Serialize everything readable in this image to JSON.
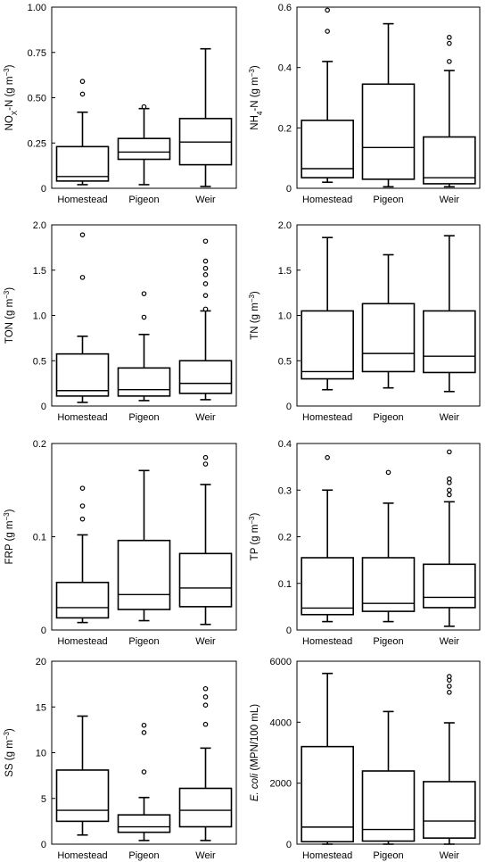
{
  "chart_data": [
    {
      "type": "box",
      "ylabel_parts": [
        {
          "t": "NO"
        },
        {
          "t": "X",
          "sub": true
        },
        {
          "t": "-N (g m"
        },
        {
          "t": "−3",
          "sup": true
        },
        {
          "t": ")"
        }
      ],
      "ylim": [
        0,
        1.0
      ],
      "yticks": [
        "0",
        "0.25",
        "0.50",
        "0.75",
        "1.00"
      ],
      "ytick_values": [
        0,
        0.25,
        0.5,
        0.75,
        1.0
      ],
      "categories": [
        "Homestead",
        "Pigeon",
        "Weir"
      ],
      "boxes": [
        {
          "whislo": 0.02,
          "q1": 0.04,
          "med": 0.065,
          "q3": 0.23,
          "whishi": 0.42,
          "fliers": [
            0.52,
            0.59
          ]
        },
        {
          "whislo": 0.02,
          "q1": 0.16,
          "med": 0.2,
          "q3": 0.275,
          "whishi": 0.44,
          "fliers": [
            0.45
          ]
        },
        {
          "whislo": 0.01,
          "q1": 0.13,
          "med": 0.255,
          "q3": 0.385,
          "whishi": 0.77,
          "fliers": []
        }
      ]
    },
    {
      "type": "box",
      "ylabel_parts": [
        {
          "t": "NH"
        },
        {
          "t": "4",
          "sub": true
        },
        {
          "t": "-N (g m"
        },
        {
          "t": "−3",
          "sup": true
        },
        {
          "t": ")"
        }
      ],
      "ylim": [
        0,
        0.6
      ],
      "yticks": [
        "0",
        "0.2",
        "0.4",
        "0.6"
      ],
      "ytick_values": [
        0,
        0.2,
        0.4,
        0.6
      ],
      "categories": [
        "Homestead",
        "Pigeon",
        "Weir"
      ],
      "boxes": [
        {
          "whislo": 0.02,
          "q1": 0.035,
          "med": 0.065,
          "q3": 0.225,
          "whishi": 0.42,
          "fliers": [
            0.52,
            0.59
          ]
        },
        {
          "whislo": 0.005,
          "q1": 0.03,
          "med": 0.135,
          "q3": 0.345,
          "whishi": 0.545,
          "fliers": []
        },
        {
          "whislo": 0.005,
          "q1": 0.015,
          "med": 0.035,
          "q3": 0.17,
          "whishi": 0.39,
          "fliers": [
            0.42,
            0.48,
            0.5
          ]
        }
      ]
    },
    {
      "type": "box",
      "ylabel_parts": [
        {
          "t": "TON (g m"
        },
        {
          "t": "−3",
          "sup": true
        },
        {
          "t": ")"
        }
      ],
      "ylim": [
        0,
        2.0
      ],
      "yticks": [
        "0",
        "0.5",
        "1.0",
        "1.5",
        "2.0"
      ],
      "ytick_values": [
        0,
        0.5,
        1.0,
        1.5,
        2.0
      ],
      "categories": [
        "Homestead",
        "Pigeon",
        "Weir"
      ],
      "boxes": [
        {
          "whislo": 0.04,
          "q1": 0.11,
          "med": 0.17,
          "q3": 0.575,
          "whishi": 0.77,
          "fliers": [
            1.42,
            1.89
          ]
        },
        {
          "whislo": 0.06,
          "q1": 0.11,
          "med": 0.18,
          "q3": 0.42,
          "whishi": 0.79,
          "fliers": [
            0.98,
            1.24
          ]
        },
        {
          "whislo": 0.07,
          "q1": 0.14,
          "med": 0.25,
          "q3": 0.5,
          "whishi": 1.05,
          "fliers": [
            1.07,
            1.22,
            1.35,
            1.45,
            1.52,
            1.6,
            1.82
          ]
        }
      ]
    },
    {
      "type": "box",
      "ylabel_parts": [
        {
          "t": "TN (g m"
        },
        {
          "t": "−3",
          "sup": true
        },
        {
          "t": ")"
        }
      ],
      "ylim": [
        0,
        2.0
      ],
      "yticks": [
        "0",
        "0.5",
        "1.0",
        "1.5",
        "2.0"
      ],
      "ytick_values": [
        0,
        0.5,
        1.0,
        1.5,
        2.0
      ],
      "categories": [
        "Homestead",
        "Pigeon",
        "Weir"
      ],
      "boxes": [
        {
          "whislo": 0.18,
          "q1": 0.3,
          "med": 0.38,
          "q3": 1.05,
          "whishi": 1.86,
          "fliers": []
        },
        {
          "whislo": 0.2,
          "q1": 0.38,
          "med": 0.58,
          "q3": 1.13,
          "whishi": 1.67,
          "fliers": []
        },
        {
          "whislo": 0.16,
          "q1": 0.37,
          "med": 0.55,
          "q3": 1.05,
          "whishi": 1.88,
          "fliers": []
        }
      ]
    },
    {
      "type": "box",
      "ylabel_parts": [
        {
          "t": "FRP (g m"
        },
        {
          "t": "−3",
          "sup": true
        },
        {
          "t": ")"
        }
      ],
      "ylim": [
        0,
        0.2
      ],
      "yticks": [
        "0",
        "0.1",
        "0.2"
      ],
      "ytick_values": [
        0,
        0.1,
        0.2
      ],
      "categories": [
        "Homestead",
        "Pigeon",
        "Weir"
      ],
      "boxes": [
        {
          "whislo": 0.008,
          "q1": 0.013,
          "med": 0.024,
          "q3": 0.051,
          "whishi": 0.102,
          "fliers": [
            0.119,
            0.133,
            0.152
          ]
        },
        {
          "whislo": 0.01,
          "q1": 0.022,
          "med": 0.038,
          "q3": 0.096,
          "whishi": 0.171,
          "fliers": []
        },
        {
          "whislo": 0.006,
          "q1": 0.025,
          "med": 0.045,
          "q3": 0.082,
          "whishi": 0.156,
          "fliers": [
            0.178,
            0.185
          ]
        }
      ]
    },
    {
      "type": "box",
      "ylabel_parts": [
        {
          "t": "TP (g m"
        },
        {
          "t": "−3",
          "sup": true
        },
        {
          "t": ")"
        }
      ],
      "ylim": [
        0,
        0.4
      ],
      "yticks": [
        "0",
        "0.1",
        "0.2",
        "0.3",
        "0.4"
      ],
      "ytick_values": [
        0,
        0.1,
        0.2,
        0.3,
        0.4
      ],
      "categories": [
        "Homestead",
        "Pigeon",
        "Weir"
      ],
      "boxes": [
        {
          "whislo": 0.018,
          "q1": 0.033,
          "med": 0.047,
          "q3": 0.155,
          "whishi": 0.3,
          "fliers": [
            0.37
          ]
        },
        {
          "whislo": 0.018,
          "q1": 0.04,
          "med": 0.057,
          "q3": 0.155,
          "whishi": 0.272,
          "fliers": [
            0.338
          ]
        },
        {
          "whislo": 0.008,
          "q1": 0.048,
          "med": 0.07,
          "q3": 0.141,
          "whishi": 0.275,
          "fliers": [
            0.29,
            0.3,
            0.316,
            0.324,
            0.382
          ]
        }
      ]
    },
    {
      "type": "box",
      "ylabel_parts": [
        {
          "t": "SS (g m"
        },
        {
          "t": "−3",
          "sup": true
        },
        {
          "t": ")"
        }
      ],
      "ylim": [
        0,
        20
      ],
      "yticks": [
        "0",
        "5",
        "10",
        "15",
        "20"
      ],
      "ytick_values": [
        0,
        5,
        10,
        15,
        20
      ],
      "categories": [
        "Homestead",
        "Pigeon",
        "Weir"
      ],
      "boxes": [
        {
          "whislo": 1.0,
          "q1": 2.5,
          "med": 3.7,
          "q3": 8.1,
          "whishi": 14.0,
          "fliers": []
        },
        {
          "whislo": 0.4,
          "q1": 1.3,
          "med": 1.9,
          "q3": 3.2,
          "whishi": 5.1,
          "fliers": [
            7.9,
            12.2,
            13.0
          ]
        },
        {
          "whislo": 0.4,
          "q1": 1.9,
          "med": 3.7,
          "q3": 6.1,
          "whishi": 10.5,
          "fliers": [
            13.1,
            15.2,
            16.1,
            17.0
          ]
        }
      ]
    },
    {
      "type": "box",
      "ylabel_parts": [
        {
          "t": "E. coli",
          "italic": true
        },
        {
          "t": " (MPN/100 mL)"
        }
      ],
      "ylim": [
        0,
        6000
      ],
      "yticks": [
        "0",
        "2000",
        "4000",
        "6000"
      ],
      "ytick_values": [
        0,
        2000,
        4000,
        6000
      ],
      "categories": [
        "Homestead",
        "Pigeon",
        "Weir"
      ],
      "boxes": [
        {
          "whislo": 0,
          "q1": 80,
          "med": 560,
          "q3": 3200,
          "whishi": 5600,
          "fliers": []
        },
        {
          "whislo": 0,
          "q1": 100,
          "med": 480,
          "q3": 2400,
          "whishi": 4350,
          "fliers": []
        },
        {
          "whislo": 0,
          "q1": 200,
          "med": 760,
          "q3": 2050,
          "whishi": 3980,
          "fliers": [
            4980,
            5180,
            5380,
            5500
          ]
        }
      ]
    }
  ]
}
